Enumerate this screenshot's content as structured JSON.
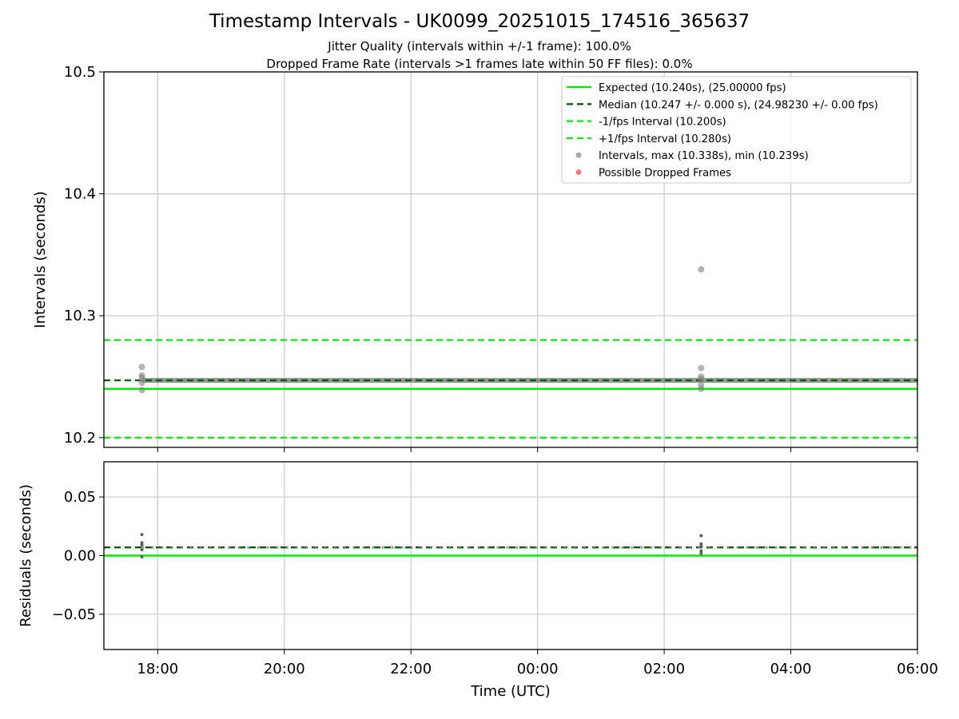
{
  "title": "Timestamp Intervals - UK0099_20251015_174516_365637",
  "subtitle_lines": [
    "Jitter Quality (intervals within +/-1 frame): 100.0%",
    "Dropped Frame Rate (intervals >1 frames late within 50 FF files): 0.0%"
  ],
  "colors": {
    "expected": "#00ee00",
    "median": "#006400",
    "fps_bounds": "#11ee11",
    "intervals": "#808080",
    "dropped": "#ff3333",
    "grid": "#c8c8c8"
  },
  "chart_data": [
    {
      "type": "scatter",
      "panel": "intervals",
      "ylabel": "Intervals (seconds)",
      "xlabel": "",
      "x_ticks": [
        "18:00",
        "20:00",
        "22:00",
        "00:00",
        "02:00",
        "04:00",
        "06:00"
      ],
      "xlim": [
        "17:09",
        "06:00"
      ],
      "ylim": [
        10.192,
        10.5
      ],
      "y_ticks": [
        10.2,
        10.3,
        10.4,
        10.5
      ],
      "y_tick_labels": [
        "10.2",
        "10.3",
        "10.4",
        "10.5"
      ],
      "grid": true,
      "legend_position": "top-right",
      "reference_lines": [
        {
          "name": "Expected (10.240s), (25.00000 fps)",
          "value": 10.24,
          "style": "solid"
        },
        {
          "name": "Median (10.247 +/- 0.000 s), (24.98230 +/- 0.00 fps)",
          "value": 10.247,
          "style": "dashed"
        },
        {
          "name": "-1/fps Interval (10.200s)",
          "value": 10.2,
          "style": "dashed"
        },
        {
          "name": "+1/fps Interval (10.280s)",
          "value": 10.28,
          "style": "dashed"
        }
      ],
      "series": [
        {
          "name": "Intervals, max (10.338s), min (10.239s)",
          "segments": [
            {
              "x_start": "17:45",
              "x_end": "02:35",
              "value": 10.247
            },
            {
              "x_start": "02:35",
              "x_end": "06:00",
              "value": 10.247
            }
          ],
          "points": [
            {
              "x": "17:45",
              "y": 10.258
            },
            {
              "x": "17:45",
              "y": 10.251
            },
            {
              "x": "17:45",
              "y": 10.249
            },
            {
              "x": "17:45",
              "y": 10.245
            },
            {
              "x": "17:45",
              "y": 10.239
            },
            {
              "x": "02:35",
              "y": 10.338
            },
            {
              "x": "02:35",
              "y": 10.257
            },
            {
              "x": "02:35",
              "y": 10.25
            },
            {
              "x": "02:35",
              "y": 10.248
            },
            {
              "x": "02:35",
              "y": 10.243
            },
            {
              "x": "02:35",
              "y": 10.24
            }
          ]
        },
        {
          "name": "Possible Dropped Frames",
          "points": []
        }
      ]
    },
    {
      "type": "scatter",
      "panel": "residuals",
      "ylabel": "Residuals (seconds)",
      "xlabel": "Time (UTC)",
      "x_ticks": [
        "18:00",
        "20:00",
        "22:00",
        "00:00",
        "02:00",
        "04:00",
        "06:00"
      ],
      "xlim": [
        "17:09",
        "06:00"
      ],
      "ylim": [
        -0.08,
        0.08
      ],
      "y_ticks": [
        -0.05,
        0.0,
        0.05
      ],
      "y_tick_labels": [
        "−0.05",
        "0.00",
        "0.05"
      ],
      "grid": true,
      "reference_lines": [
        {
          "value": 0.0,
          "style": "solid"
        },
        {
          "value": 0.007,
          "style": "dashed"
        }
      ],
      "points": [
        {
          "x": "17:45",
          "y": 0.018
        },
        {
          "x": "17:45",
          "y": 0.011
        },
        {
          "x": "17:45",
          "y": 0.009
        },
        {
          "x": "17:45",
          "y": 0.005
        },
        {
          "x": "17:45",
          "y": -0.001
        },
        {
          "x": "02:35",
          "y": 0.017
        },
        {
          "x": "02:35",
          "y": 0.01
        },
        {
          "x": "02:35",
          "y": 0.008
        },
        {
          "x": "02:35",
          "y": 0.004
        },
        {
          "x": "02:35",
          "y": 0.002
        }
      ],
      "point_band": {
        "x_start": "17:45",
        "x_end": "06:00",
        "value": 0.007
      }
    }
  ]
}
